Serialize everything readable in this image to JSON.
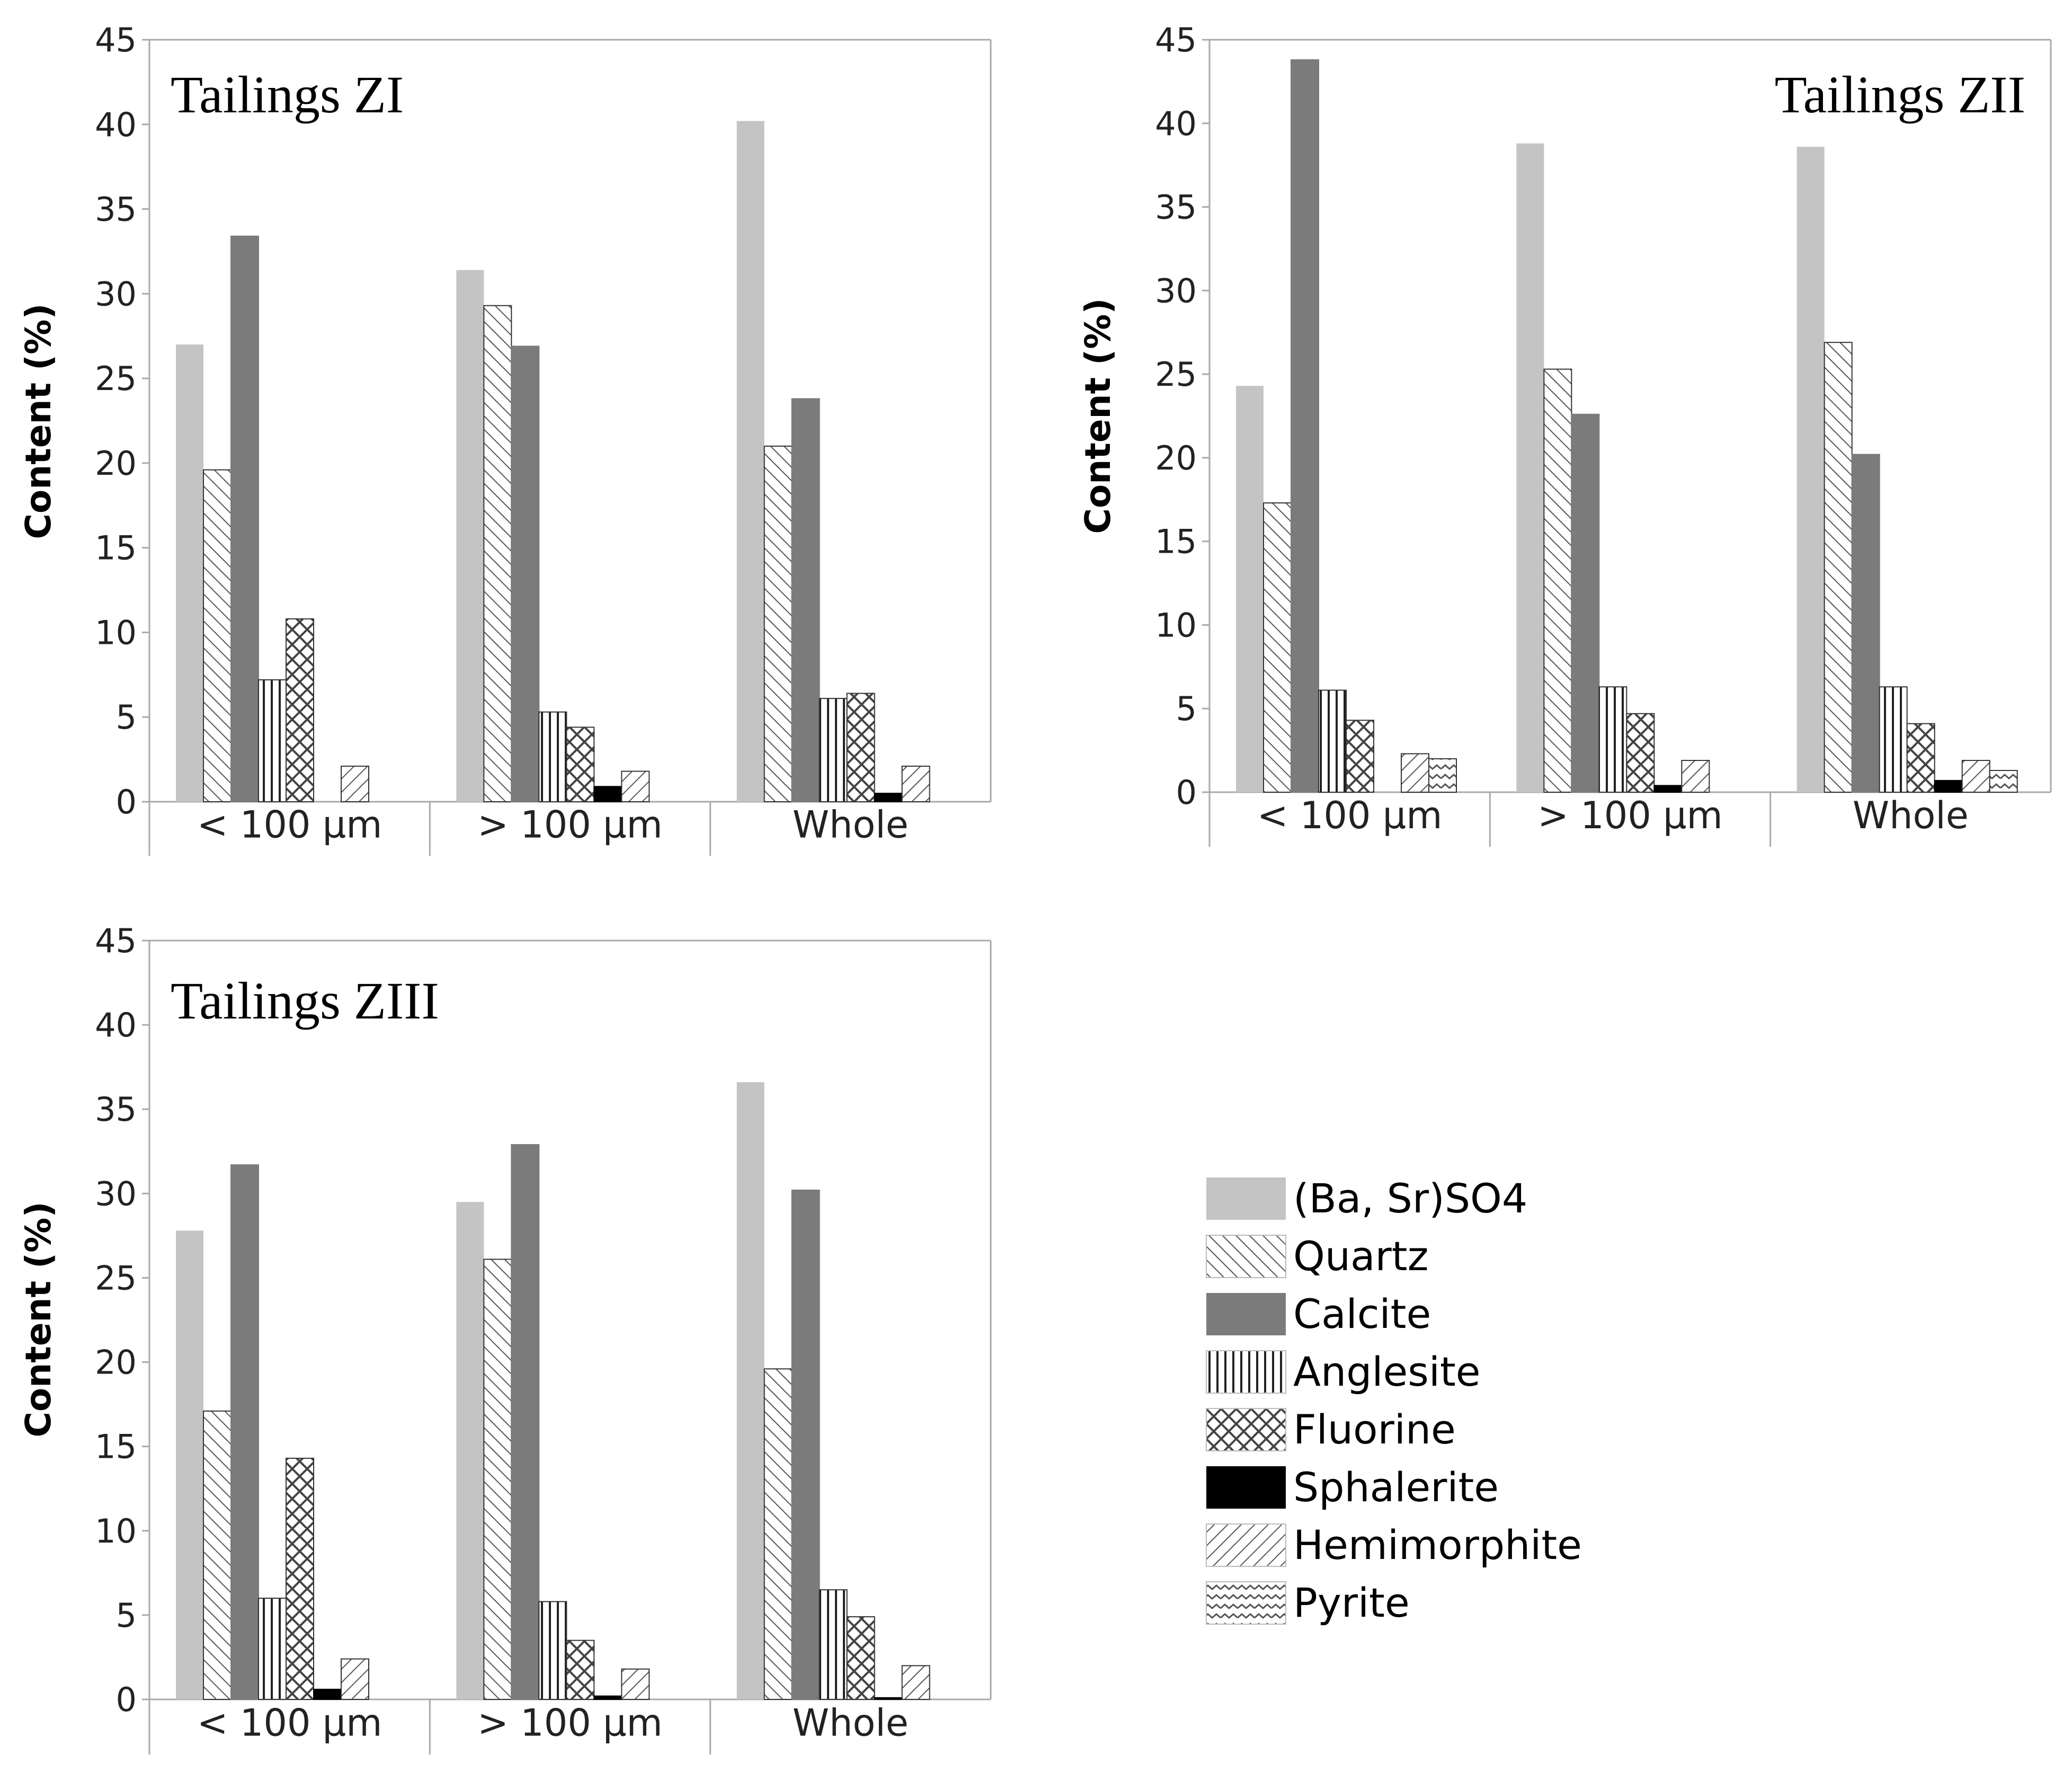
{
  "legend": {
    "items": [
      {
        "name": "(Ba, Sr)SO4",
        "pattern": "light"
      },
      {
        "name": "Quartz",
        "pattern": "diag-back"
      },
      {
        "name": "Calcite",
        "pattern": "dark"
      },
      {
        "name": "Anglesite",
        "pattern": "vertical"
      },
      {
        "name": "Fluorine",
        "pattern": "cross"
      },
      {
        "name": "Sphalerite",
        "pattern": "black"
      },
      {
        "name": "Hemimorphite",
        "pattern": "diag-fwd"
      },
      {
        "name": "Pyrite",
        "pattern": "wave"
      }
    ]
  },
  "colors": {
    "light": "#c4c4c4",
    "dark": "#7b7b7b",
    "black": "#000000",
    "hatch": "#555555",
    "axis": "#aaaaaa"
  },
  "chart_data": [
    {
      "type": "bar",
      "title": "Tailings ZI",
      "ylabel": "Content (%)",
      "xlabel": "",
      "ylim": [
        0,
        45
      ],
      "yticks": [
        0,
        5,
        10,
        15,
        20,
        25,
        30,
        35,
        40,
        45
      ],
      "categories": [
        "< 100 μm",
        "> 100 μm",
        "Whole"
      ],
      "title_position": "top-left",
      "series": [
        {
          "name": "(Ba, Sr)SO4",
          "values": [
            27.0,
            31.4,
            40.2
          ]
        },
        {
          "name": "Quartz",
          "values": [
            19.6,
            29.3,
            21.0
          ]
        },
        {
          "name": "Calcite",
          "values": [
            33.4,
            26.9,
            23.8
          ]
        },
        {
          "name": "Anglesite",
          "values": [
            7.2,
            5.3,
            6.1
          ]
        },
        {
          "name": "Fluorine",
          "values": [
            10.8,
            4.4,
            6.4
          ]
        },
        {
          "name": "Sphalerite",
          "values": [
            0,
            0.9,
            0.5
          ]
        },
        {
          "name": "Hemimorphite",
          "values": [
            2.1,
            1.8,
            2.1
          ]
        },
        {
          "name": "Pyrite",
          "values": [
            0,
            0,
            0
          ]
        }
      ]
    },
    {
      "type": "bar",
      "title": "Tailings ZII",
      "ylabel": "Content (%)",
      "xlabel": "",
      "ylim": [
        0,
        45
      ],
      "yticks": [
        0,
        5,
        10,
        15,
        20,
        25,
        30,
        35,
        40,
        45
      ],
      "categories": [
        "< 100 μm",
        "> 100 μm",
        "Whole"
      ],
      "title_position": "top-right",
      "series": [
        {
          "name": "(Ba, Sr)SO4",
          "values": [
            24.3,
            38.8,
            38.6
          ]
        },
        {
          "name": "Quartz",
          "values": [
            17.3,
            25.3,
            26.9
          ]
        },
        {
          "name": "Calcite",
          "values": [
            43.8,
            22.6,
            20.2
          ]
        },
        {
          "name": "Anglesite",
          "values": [
            6.1,
            6.3,
            6.3
          ]
        },
        {
          "name": "Fluorine",
          "values": [
            4.3,
            4.7,
            4.1
          ]
        },
        {
          "name": "Sphalerite",
          "values": [
            0,
            0.4,
            0.7
          ]
        },
        {
          "name": "Hemimorphite",
          "values": [
            2.3,
            1.9,
            1.9
          ]
        },
        {
          "name": "Pyrite",
          "values": [
            2.0,
            0,
            1.3
          ]
        }
      ]
    },
    {
      "type": "bar",
      "title": "Tailings ZIII",
      "ylabel": "Content (%)",
      "xlabel": "",
      "ylim": [
        0,
        45
      ],
      "yticks": [
        0,
        5,
        10,
        15,
        20,
        25,
        30,
        35,
        40,
        45
      ],
      "categories": [
        "< 100 μm",
        "> 100 μm",
        "Whole"
      ],
      "title_position": "top-left",
      "series": [
        {
          "name": "(Ba, Sr)SO4",
          "values": [
            27.8,
            29.5,
            36.6
          ]
        },
        {
          "name": "Quartz",
          "values": [
            17.1,
            26.1,
            19.6
          ]
        },
        {
          "name": "Calcite",
          "values": [
            31.7,
            32.9,
            30.2
          ]
        },
        {
          "name": "Anglesite",
          "values": [
            6.0,
            5.8,
            6.5
          ]
        },
        {
          "name": "Fluorine",
          "values": [
            14.3,
            3.5,
            4.9
          ]
        },
        {
          "name": "Sphalerite",
          "values": [
            0.6,
            0.2,
            0.1
          ]
        },
        {
          "name": "Hemimorphite",
          "values": [
            2.4,
            1.8,
            2.0
          ]
        },
        {
          "name": "Pyrite",
          "values": [
            0,
            0,
            0
          ]
        }
      ]
    }
  ]
}
